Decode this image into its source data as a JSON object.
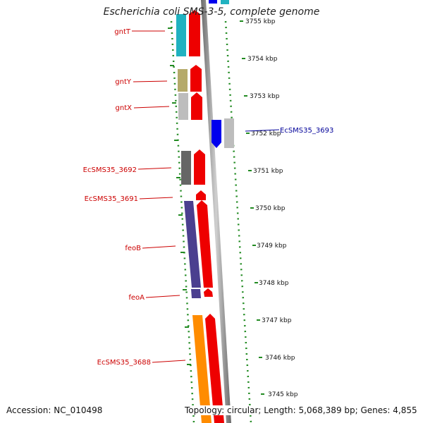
{
  "title": "Escherichia coli SMS-3-5, complete genome",
  "accession": "Accession: NC_010498",
  "topology": "Topology: circular; Length: 5,068,389 bp; Genes: 4,855",
  "colors": {
    "left_label": "#cc0000",
    "right_label": "#000099",
    "axis_dots": "#228b22",
    "backbone": "#888888"
  },
  "ruler": {
    "unit": "kbp",
    "ticks": [
      "3755 kbp",
      "3754 kbp",
      "3753 kbp",
      "3752 kbp",
      "3751 kbp",
      "3750 kbp",
      "3749 kbp",
      "3748 kbp",
      "3747 kbp",
      "3746 kbp",
      "3745 kbp"
    ]
  },
  "genes": [
    {
      "name": "gntT",
      "side": "left",
      "bar_color": "#20b2c0",
      "strand": "reverse"
    },
    {
      "name": "gntY",
      "side": "left",
      "bar_color": "#b5aa6a",
      "strand": "reverse"
    },
    {
      "name": "gntX",
      "side": "left",
      "bar_color": "#bdbdbd",
      "strand": "reverse"
    },
    {
      "name": "EcSMS35_3693",
      "side": "right",
      "bar_color": "#0000ee",
      "strand": "forward"
    },
    {
      "name": "EcSMS35_3692",
      "side": "left",
      "bar_color": "#666666",
      "strand": "reverse"
    },
    {
      "name": "EcSMS35_3691",
      "side": "left",
      "bar_color": "#ff0000",
      "strand": "reverse"
    },
    {
      "name": "feoB",
      "side": "left",
      "bar_color": "#4b3f8f",
      "strand": "reverse"
    },
    {
      "name": "feoA",
      "side": "left",
      "bar_color": "#4b3f8f",
      "strand": "reverse"
    },
    {
      "name": "EcSMS35_3688",
      "side": "left",
      "bar_color": "#ff8c00",
      "strand": "reverse"
    }
  ]
}
